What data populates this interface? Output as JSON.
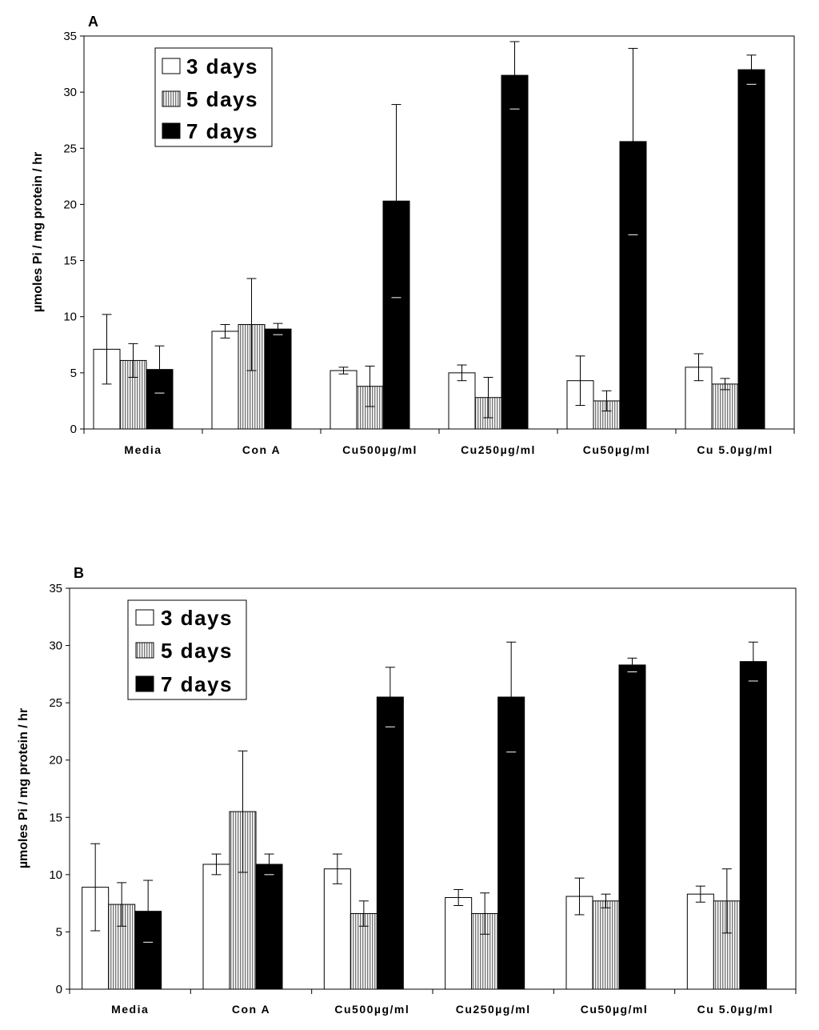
{
  "colors": {
    "day3": "#ffffff",
    "day5": "#cfcfcf",
    "day7": "#000000",
    "axis": "#000000"
  },
  "chart_data": [
    {
      "panel": "A",
      "type": "bar",
      "ylabel": "µmoles Pi / mg protein / hr",
      "ylim": [
        0,
        35
      ],
      "yticks": [
        "0",
        "5",
        "10",
        "15",
        "20",
        "25",
        "30",
        "35"
      ],
      "categories": [
        "Media",
        "Con A",
        "Cu500µg/ml",
        "Cu250µg/ml",
        "Cu50µg/ml",
        "Cu 5.0µg/ml"
      ],
      "legend_position": "top-left",
      "series": [
        {
          "name": "3 days",
          "fill": "white",
          "values": [
            7.1,
            8.7,
            5.2,
            5.0,
            4.3,
            5.5
          ],
          "errors": [
            3.1,
            0.6,
            0.3,
            0.7,
            2.2,
            1.2
          ]
        },
        {
          "name": "5 days",
          "fill": "striped",
          "values": [
            6.1,
            9.3,
            3.8,
            2.8,
            2.5,
            4.0
          ],
          "errors": [
            1.5,
            4.1,
            1.8,
            1.8,
            0.9,
            0.5
          ]
        },
        {
          "name": "7 days",
          "fill": "black",
          "values": [
            5.3,
            8.9,
            20.3,
            31.5,
            25.6,
            32.0
          ],
          "errors": [
            2.1,
            0.5,
            8.6,
            3.0,
            8.3,
            1.3
          ]
        }
      ]
    },
    {
      "panel": "B",
      "type": "bar",
      "ylabel": "µmoles Pi / mg protein / hr",
      "ylim": [
        0,
        35
      ],
      "yticks": [
        "0",
        "5",
        "10",
        "15",
        "20",
        "25",
        "30",
        "35"
      ],
      "categories": [
        "Media",
        "Con A",
        "Cu500µg/ml",
        "Cu250µg/ml",
        "Cu50µg/ml",
        "Cu 5.0µg/ml"
      ],
      "legend_position": "top-left",
      "series": [
        {
          "name": "3 days",
          "fill": "white",
          "values": [
            8.9,
            10.9,
            10.5,
            8.0,
            8.1,
            8.3
          ],
          "errors": [
            3.8,
            0.9,
            1.3,
            0.7,
            1.6,
            0.7
          ]
        },
        {
          "name": "5 days",
          "fill": "striped",
          "values": [
            7.4,
            15.5,
            6.6,
            6.6,
            7.7,
            7.7
          ],
          "errors": [
            1.9,
            5.3,
            1.1,
            1.8,
            0.6,
            2.8
          ]
        },
        {
          "name": "7 days",
          "fill": "black",
          "values": [
            6.8,
            10.9,
            25.5,
            25.5,
            28.3,
            28.6
          ],
          "errors": [
            2.7,
            0.9,
            2.6,
            4.8,
            0.6,
            1.7
          ]
        }
      ]
    }
  ]
}
